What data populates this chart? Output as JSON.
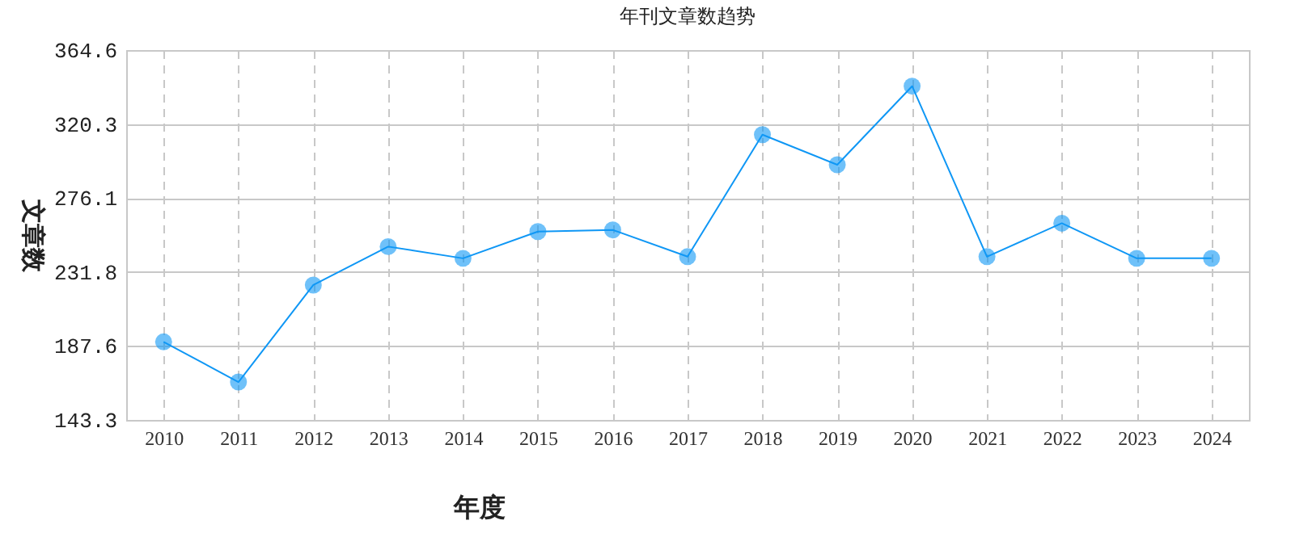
{
  "chart_data": {
    "type": "line",
    "title": "年刊文章数趋势",
    "xlabel": "年度",
    "ylabel": "文章数",
    "categories": [
      "2010",
      "2011",
      "2012",
      "2013",
      "2014",
      "2015",
      "2016",
      "2017",
      "2018",
      "2019",
      "2020",
      "2021",
      "2022",
      "2023",
      "2024"
    ],
    "series": [
      {
        "color": "#0f97f5",
        "values": [
          190,
          166,
          224,
          247,
          240,
          256,
          257,
          241,
          314,
          296,
          343,
          241,
          261,
          240,
          240
        ]
      }
    ],
    "ylim": [
      143.3,
      364.6
    ],
    "yticks": [
      143.3,
      187.6,
      231.8,
      276.1,
      320.3,
      364.6
    ],
    "grid": true,
    "marker": "circle",
    "line_style": "solid"
  }
}
